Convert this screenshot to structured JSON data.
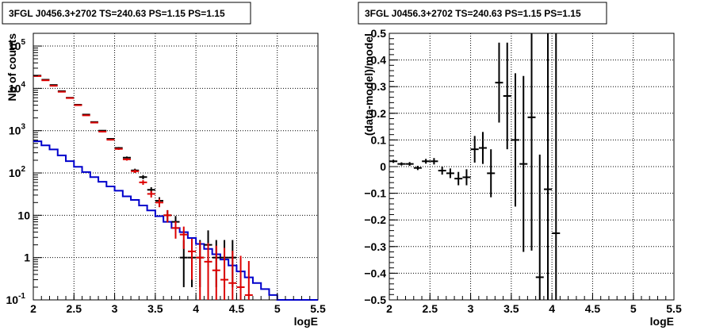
{
  "chart_data": [
    {
      "type": "line",
      "title": "3FGL J0456.3+2702 TS=240.63 PS=1.15 PS=1.15",
      "xlabel": "logE",
      "ylabel": "Nb of counts",
      "xlim": [
        2,
        5.5
      ],
      "ylim": [
        0.1,
        200000
      ],
      "yscale": "log",
      "grid": true,
      "x_ticks": [
        "2",
        "2.5",
        "3",
        "3.5",
        "4",
        "4.5",
        "5",
        "5.5"
      ],
      "y_ticks": [
        {
          "label": "10",
          "exp": "-1",
          "value": 0.1
        },
        {
          "label": "1",
          "exp": "",
          "value": 1
        },
        {
          "label": "10",
          "exp": "",
          "value": 10
        },
        {
          "label": "10",
          "exp": "2",
          "value": 100
        },
        {
          "label": "10",
          "exp": "3",
          "value": 1000
        },
        {
          "label": "10",
          "exp": "4",
          "value": 10000
        },
        {
          "label": "10",
          "exp": "5",
          "value": 100000
        }
      ],
      "x_edges": [
        2.0,
        2.1,
        2.2,
        2.3,
        2.4,
        2.5,
        2.6,
        2.7,
        2.8,
        2.9,
        3.0,
        3.1,
        3.2,
        3.3,
        3.4,
        3.5,
        3.6,
        3.7,
        3.8,
        3.9,
        4.0,
        4.1,
        4.2,
        4.3,
        4.4,
        4.5,
        4.6,
        4.7,
        4.8,
        4.9,
        5.0,
        5.1,
        5.2,
        5.3,
        5.4,
        5.5
      ],
      "series": [
        {
          "style": "step",
          "color": "#0000cc",
          "values": [
            560,
            450,
            360,
            260,
            190,
            140,
            105,
            80,
            62,
            48,
            38,
            28,
            23,
            17,
            13,
            9.5,
            7,
            5,
            4,
            2.9,
            2.1,
            1.6,
            1.2,
            0.9,
            0.65,
            0.47,
            0.34,
            0.25,
            0.18,
            0.13,
            0.1,
            0.1,
            0.1,
            0.1,
            0.1
          ]
        },
        {
          "style": "errorbar",
          "color": "#000000",
          "x": [
            2.05,
            2.15,
            2.25,
            2.35,
            2.45,
            2.55,
            2.65,
            2.75,
            2.85,
            2.95,
            3.05,
            3.15,
            3.25,
            3.35,
            3.45,
            3.55,
            3.65,
            3.75,
            3.85,
            3.95,
            4.05,
            4.15,
            4.25,
            4.35,
            4.45
          ],
          "y": [
            20000,
            16000,
            12000,
            8600,
            6000,
            4100,
            2400,
            1600,
            1000,
            640,
            390,
            230,
            115,
            80,
            40,
            22,
            10,
            7,
            1,
            1,
            1,
            2,
            1,
            1,
            1
          ],
          "err_lo": [
            141,
            126,
            110,
            93,
            77,
            64,
            49,
            40,
            32,
            25,
            20,
            15,
            11,
            9,
            6,
            4.7,
            3.2,
            2.6,
            0.8,
            0.8,
            0.8,
            1.4,
            0.8,
            0.8,
            0.8
          ],
          "err_hi": [
            141,
            126,
            110,
            93,
            77,
            64,
            49,
            40,
            32,
            25,
            20,
            15,
            11,
            9,
            6,
            4.7,
            3.2,
            2.6,
            1.6,
            1.6,
            1.6,
            2.4,
            1.6,
            1.6,
            1.6
          ]
        },
        {
          "style": "errorbar",
          "color": "#dd0000",
          "x": [
            2.05,
            2.15,
            2.25,
            2.35,
            2.45,
            2.55,
            2.65,
            2.75,
            2.85,
            2.95,
            3.05,
            3.15,
            3.25,
            3.35,
            3.45,
            3.55,
            3.65,
            3.75,
            3.85,
            3.95,
            4.05,
            4.15,
            4.25,
            4.35,
            4.45,
            4.55,
            4.65
          ],
          "y": [
            19500,
            15500,
            11500,
            8300,
            5900,
            4000,
            2300,
            1550,
            950,
            610,
            370,
            210,
            110,
            60,
            32,
            20,
            10,
            5,
            3.5,
            1.4,
            1,
            0.8,
            0.5,
            0.3,
            0.25,
            0.2,
            0.13
          ],
          "err_lo": [
            140,
            124,
            107,
            91,
            77,
            63,
            48,
            39,
            31,
            25,
            19,
            14,
            10,
            7.7,
            5.7,
            4.5,
            3.2,
            2.2,
            1.9,
            1.1,
            0.9,
            0.75,
            0.45,
            0.2,
            0.15,
            0.1,
            0.03
          ],
          "err_hi": [
            140,
            124,
            107,
            91,
            77,
            63,
            48,
            39,
            31,
            25,
            19,
            14,
            10,
            7.7,
            5.7,
            4.5,
            3.2,
            2.2,
            1.9,
            1.4,
            1.4,
            1.4,
            1.4,
            1.4,
            1.2,
            0.9,
            0.7
          ]
        }
      ]
    },
    {
      "type": "scatter",
      "title": "3FGL J0456.3+2702 TS=240.63 PS=1.15 PS=1.15",
      "xlabel": "logE",
      "ylabel": "(data-model)/model",
      "xlim": [
        2,
        5.5
      ],
      "ylim": [
        -0.5,
        0.5
      ],
      "grid": true,
      "x_ticks": [
        "2",
        "2.5",
        "3",
        "3.5",
        "4",
        "4.5",
        "5",
        "5.5"
      ],
      "y_ticks": [
        "−0.5",
        "−0.4",
        "−0.3",
        "−0.2",
        "−0.1",
        "0",
        "0.1",
        "0.2",
        "0.3",
        "0.4",
        "0.5"
      ],
      "y_tick_values": [
        -0.5,
        -0.4,
        -0.3,
        -0.2,
        -0.1,
        0,
        0.1,
        0.2,
        0.3,
        0.4,
        0.5
      ],
      "series": [
        {
          "style": "errorbar",
          "color": "#000000",
          "x": [
            2.05,
            2.15,
            2.25,
            2.35,
            2.45,
            2.55,
            2.65,
            2.75,
            2.85,
            2.95,
            3.05,
            3.15,
            3.25,
            3.35,
            3.45,
            3.55,
            3.65,
            3.75,
            3.85,
            3.95,
            4.05
          ],
          "y": [
            0.02,
            0.01,
            0.01,
            -0.005,
            0.02,
            0.02,
            -0.015,
            -0.025,
            -0.045,
            -0.04,
            0.065,
            0.07,
            -0.025,
            0.315,
            0.265,
            0.1,
            0.01,
            0.185,
            -0.415,
            -0.085,
            -0.25
          ],
          "err": [
            0.006,
            0.006,
            0.007,
            0.008,
            0.009,
            0.012,
            0.015,
            0.018,
            0.025,
            0.03,
            0.05,
            0.06,
            0.09,
            0.15,
            0.2,
            0.25,
            0.33,
            0.5,
            0.46,
            0.8,
            0.8
          ]
        }
      ]
    }
  ]
}
